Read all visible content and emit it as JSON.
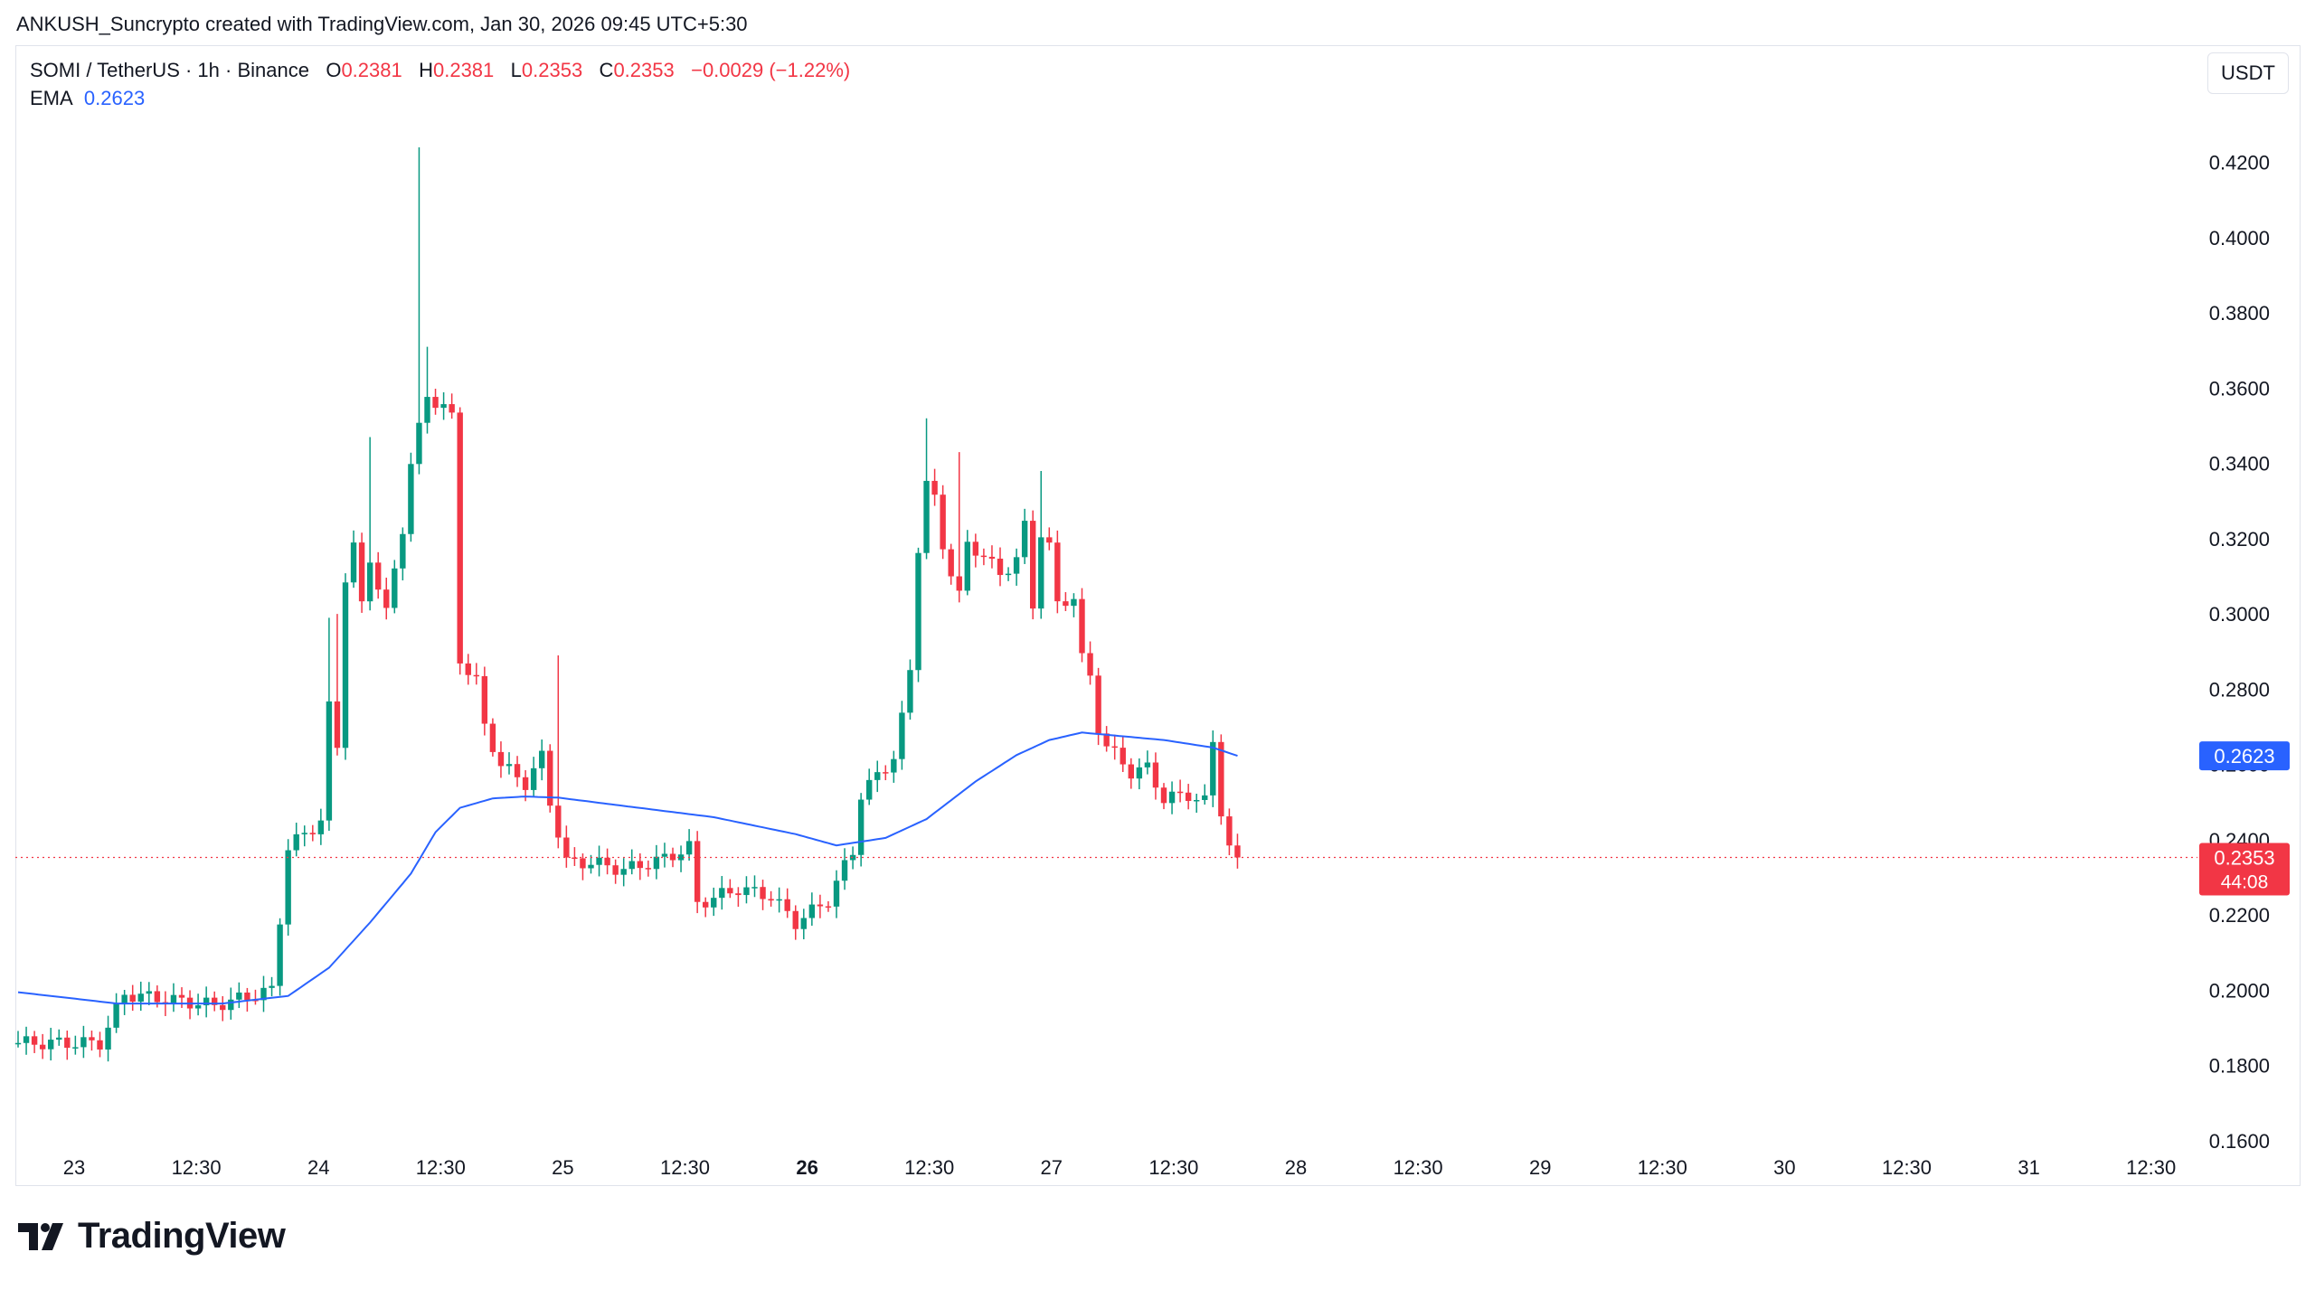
{
  "caption": "ANKUSH_Suncrypto created with TradingView.com, Jan 30, 2026 09:45 UTC+5:30",
  "legend": {
    "symbol": "SOMI / TetherUS · 1h · Binance",
    "o_label": "O",
    "o_value": "0.2381",
    "h_label": "H",
    "h_value": "0.2381",
    "l_label": "L",
    "l_value": "0.2353",
    "c_label": "C",
    "c_value": "0.2353",
    "change": "−0.0029 (−1.22%)",
    "ema_label": "EMA",
    "ema_value": "0.2623"
  },
  "unit_button": "USDT",
  "price_badge": {
    "price": "0.2353",
    "countdown": "44:08"
  },
  "ema_badge": "0.2623",
  "footer_brand": "TradingView",
  "colors": {
    "up": "#089981",
    "down": "#f23645",
    "ema": "#2962ff",
    "axis_text": "#131722"
  },
  "chart_data": {
    "type": "candlestick",
    "ylim": [
      0.16,
      0.43
    ],
    "y_ticks": [
      "0.4200",
      "0.4000",
      "0.3800",
      "0.3600",
      "0.3400",
      "0.3200",
      "0.3000",
      "0.2800",
      "0.2600",
      "0.2400",
      "0.2200",
      "0.2000",
      "0.1800",
      "0.1600"
    ],
    "x_ticks": [
      "23",
      "12:30",
      "24",
      "12:30",
      "25",
      "12:30",
      "26",
      "12:30",
      "27",
      "12:30",
      "28",
      "12:30",
      "29",
      "12:30",
      "30",
      "12:30",
      "31",
      "12:30"
    ],
    "x_bold_tick": "26",
    "last_price": 0.2353,
    "ema_last": 0.2623,
    "key_points": [
      {
        "t": 0,
        "p": 0.186
      },
      {
        "t": 10,
        "p": 0.186
      },
      {
        "t": 13,
        "p": 0.199
      },
      {
        "t": 24,
        "p": 0.196
      },
      {
        "t": 31,
        "p": 0.2
      },
      {
        "t": 33,
        "p": 0.238
      },
      {
        "t": 37,
        "p": 0.245
      },
      {
        "t": 38,
        "p": 0.275
      },
      {
        "t": 39,
        "p": 0.265
      },
      {
        "t": 40,
        "p": 0.31
      },
      {
        "t": 41,
        "p": 0.318
      },
      {
        "t": 42,
        "p": 0.302
      },
      {
        "t": 43,
        "p": 0.315
      },
      {
        "t": 45,
        "p": 0.3
      },
      {
        "t": 47,
        "p": 0.323
      },
      {
        "t": 48,
        "p": 0.34
      },
      {
        "t": 50,
        "p": 0.358
      },
      {
        "t": 52,
        "p": 0.355
      },
      {
        "t": 53,
        "p": 0.352
      },
      {
        "t": 54,
        "p": 0.288
      },
      {
        "t": 56,
        "p": 0.282
      },
      {
        "t": 57,
        "p": 0.27
      },
      {
        "t": 59,
        "p": 0.26
      },
      {
        "t": 62,
        "p": 0.255
      },
      {
        "t": 64,
        "p": 0.262
      },
      {
        "t": 65,
        "p": 0.25
      },
      {
        "t": 67,
        "p": 0.234
      },
      {
        "t": 70,
        "p": 0.234
      },
      {
        "t": 74,
        "p": 0.232
      },
      {
        "t": 79,
        "p": 0.235
      },
      {
        "t": 82,
        "p": 0.238
      },
      {
        "t": 83,
        "p": 0.223
      },
      {
        "t": 88,
        "p": 0.227
      },
      {
        "t": 92,
        "p": 0.225
      },
      {
        "t": 95,
        "p": 0.218
      },
      {
        "t": 99,
        "p": 0.224
      },
      {
        "t": 101,
        "p": 0.233
      },
      {
        "t": 102,
        "p": 0.237
      },
      {
        "t": 103,
        "p": 0.252
      },
      {
        "t": 107,
        "p": 0.262
      },
      {
        "t": 108,
        "p": 0.272
      },
      {
        "t": 109,
        "p": 0.285
      },
      {
        "t": 110,
        "p": 0.318
      },
      {
        "t": 111,
        "p": 0.335
      },
      {
        "t": 112,
        "p": 0.33
      },
      {
        "t": 113,
        "p": 0.318
      },
      {
        "t": 115,
        "p": 0.305
      },
      {
        "t": 116,
        "p": 0.318
      },
      {
        "t": 118,
        "p": 0.316
      },
      {
        "t": 120,
        "p": 0.31
      },
      {
        "t": 122,
        "p": 0.315
      },
      {
        "t": 123,
        "p": 0.323
      },
      {
        "t": 124,
        "p": 0.302
      },
      {
        "t": 125,
        "p": 0.322
      },
      {
        "t": 126,
        "p": 0.318
      },
      {
        "t": 127,
        "p": 0.302
      },
      {
        "t": 129,
        "p": 0.305
      },
      {
        "t": 130,
        "p": 0.288
      },
      {
        "t": 131,
        "p": 0.283
      },
      {
        "t": 132,
        "p": 0.27
      },
      {
        "t": 133,
        "p": 0.265
      },
      {
        "t": 136,
        "p": 0.258
      },
      {
        "t": 138,
        "p": 0.259
      },
      {
        "t": 140,
        "p": 0.251
      },
      {
        "t": 143,
        "p": 0.252
      },
      {
        "t": 145,
        "p": 0.25
      },
      {
        "t": 146,
        "p": 0.266
      },
      {
        "t": 147,
        "p": 0.248
      },
      {
        "t": 148,
        "p": 0.238
      },
      {
        "t": 149,
        "p": 0.2353
      }
    ],
    "spikes": [
      {
        "t": 38,
        "high": 0.299
      },
      {
        "t": 39,
        "high": 0.3
      },
      {
        "t": 43,
        "high": 0.347
      },
      {
        "t": 49,
        "high": 0.424
      },
      {
        "t": 50,
        "high": 0.371
      },
      {
        "t": 66,
        "high": 0.289
      },
      {
        "t": 111,
        "high": 0.352
      },
      {
        "t": 115,
        "high": 0.343
      },
      {
        "t": 125,
        "high": 0.338
      },
      {
        "t": 147,
        "high": 0.268
      }
    ],
    "ema_points": [
      {
        "t": 0,
        "p": 0.1995
      },
      {
        "t": 12,
        "p": 0.1965
      },
      {
        "t": 25,
        "p": 0.1965
      },
      {
        "t": 33,
        "p": 0.1985
      },
      {
        "t": 38,
        "p": 0.206
      },
      {
        "t": 43,
        "p": 0.218
      },
      {
        "t": 48,
        "p": 0.231
      },
      {
        "t": 51,
        "p": 0.242
      },
      {
        "t": 54,
        "p": 0.2485
      },
      {
        "t": 58,
        "p": 0.251
      },
      {
        "t": 62,
        "p": 0.2515
      },
      {
        "t": 66,
        "p": 0.2512
      },
      {
        "t": 74,
        "p": 0.249
      },
      {
        "t": 85,
        "p": 0.246
      },
      {
        "t": 95,
        "p": 0.2415
      },
      {
        "t": 100,
        "p": 0.2385
      },
      {
        "t": 106,
        "p": 0.2405
      },
      {
        "t": 111,
        "p": 0.2455
      },
      {
        "t": 117,
        "p": 0.2555
      },
      {
        "t": 122,
        "p": 0.2625
      },
      {
        "t": 126,
        "p": 0.2665
      },
      {
        "t": 130,
        "p": 0.2685
      },
      {
        "t": 135,
        "p": 0.2675
      },
      {
        "t": 140,
        "p": 0.2665
      },
      {
        "t": 146,
        "p": 0.2645
      },
      {
        "t": 149,
        "p": 0.2623
      }
    ]
  }
}
